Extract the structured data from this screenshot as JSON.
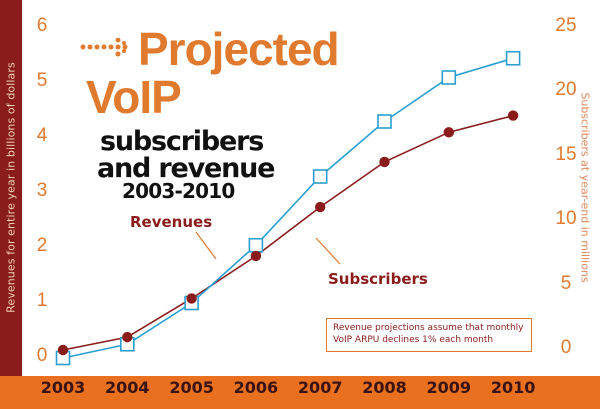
{
  "title": {
    "line1": "Projected",
    "line2": "VoIP",
    "sub1": "subscribers",
    "sub2": "and revenue",
    "sub3": "2003-2010"
  },
  "annotation_note": "Revenue projections assume that monthly VoIP ARPU declines 1% each month",
  "colors": {
    "revenues": "#2a9fcf",
    "subscribers": "#8a1c1c",
    "accent": "#e8701f",
    "left_bar": "#8a1c1c"
  },
  "chart_data": {
    "type": "line",
    "x": [
      "2003",
      "2004",
      "2005",
      "2006",
      "2007",
      "2008",
      "2009",
      "2010"
    ],
    "ylabel": "Revenues for entire year in billions of dollars",
    "y2label": "Subscribers at year-end in millions",
    "ylim": [
      0,
      6
    ],
    "y2lim": [
      0,
      25
    ],
    "yticks": [
      "0",
      "1",
      "2",
      "3",
      "4",
      "5",
      "6"
    ],
    "y2ticks": [
      "0",
      "5",
      "10",
      "15",
      "20",
      "25"
    ],
    "grid": false,
    "series": [
      {
        "name": "Revenues",
        "axis": "left",
        "marker": "square",
        "values": [
          0.0,
          0.25,
          1.0,
          2.05,
          3.3,
          4.3,
          5.1,
          5.45
        ]
      },
      {
        "name": "Subscribers",
        "axis": "right",
        "marker": "circle",
        "values": [
          0.0,
          1.0,
          4.0,
          7.3,
          11.1,
          14.6,
          16.9,
          18.2
        ]
      }
    ]
  }
}
